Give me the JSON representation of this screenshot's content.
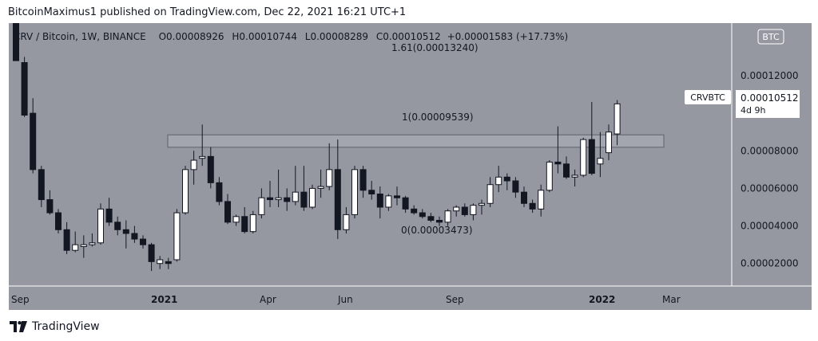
{
  "header": {
    "published": "BitcoinMaximus1 published on TradingView.com, Dec 22, 2021 16:21 UTC+1"
  },
  "symbol_info": {
    "symbol": "CRV / Bitcoin, 1W, BINANCE",
    "o_label": "O",
    "o": "0.00008926",
    "h_label": "H",
    "h": "0.00010744",
    "l_label": "L",
    "l": "0.00008289",
    "c_label": "C",
    "c": "0.00010512",
    "change": "+0.00001583 (+17.73%)"
  },
  "currency_badge": "BTC",
  "price_tag": {
    "symbol": "CRVBTC",
    "price": "0.00010512",
    "countdown": "4d 9h"
  },
  "fib_labels": [
    {
      "text": "1.61(0.00013240)"
    },
    {
      "text": "1(0.00009539)"
    },
    {
      "text": "0(0.00003473)"
    }
  ],
  "footer": {
    "brand": "TradingView"
  },
  "colors": {
    "background": "#9598a1",
    "up": "#ffffff",
    "down": "#131722",
    "zone": "#a3a6ae"
  },
  "chart_data": {
    "type": "candlestick",
    "title": "CRV / Bitcoin, 1W, BINANCE",
    "y_axis": {
      "min": 8e-06,
      "max": 0.000148,
      "ticks": [
        "0.00002000",
        "0.00004000",
        "0.00006000",
        "0.00008000",
        "0.00012000"
      ]
    },
    "x_axis": {
      "ticks": [
        "Sep",
        "2021",
        "Apr",
        "Jun",
        "Sep",
        "2022",
        "Mar"
      ]
    },
    "resistance_zone": [
      8.19e-05,
      8.85e-05
    ],
    "fib_levels": [
      {
        "ratio": 1.61,
        "value": 0.0001324
      },
      {
        "ratio": 1,
        "value": 9.539e-05
      },
      {
        "ratio": 0,
        "value": 3.473e-05
      }
    ],
    "candles": [
      {
        "o": 0.00015,
        "h": 0.00015,
        "l": 0.000128,
        "c": 0.000128
      },
      {
        "o": 0.000127,
        "h": 0.00013,
        "l": 9.8e-05,
        "c": 9.9e-05
      },
      {
        "o": 0.0001,
        "h": 0.000108,
        "l": 6.8e-05,
        "c": 7e-05
      },
      {
        "o": 7e-05,
        "h": 7.2e-05,
        "l": 5e-05,
        "c": 5.4e-05
      },
      {
        "o": 5.4e-05,
        "h": 5.9e-05,
        "l": 4.6e-05,
        "c": 4.7e-05
      },
      {
        "o": 4.7e-05,
        "h": 4.9e-05,
        "l": 3.6e-05,
        "c": 3.8e-05
      },
      {
        "o": 3.8e-05,
        "h": 4.2e-05,
        "l": 2.5e-05,
        "c": 2.7e-05
      },
      {
        "o": 2.7e-05,
        "h": 3.7e-05,
        "l": 2.6e-05,
        "c": 3e-05
      },
      {
        "o": 2.9e-05,
        "h": 3.5e-05,
        "l": 2.3e-05,
        "c": 3e-05
      },
      {
        "o": 3e-05,
        "h": 3.6e-05,
        "l": 2.9e-05,
        "c": 3.1e-05
      },
      {
        "o": 3.1e-05,
        "h": 5.2e-05,
        "l": 3e-05,
        "c": 4.9e-05
      },
      {
        "o": 4.9e-05,
        "h": 5.5e-05,
        "l": 4e-05,
        "c": 4.2e-05
      },
      {
        "o": 4.2e-05,
        "h": 4.5e-05,
        "l": 3.5e-05,
        "c": 3.8e-05
      },
      {
        "o": 3.8e-05,
        "h": 4.3e-05,
        "l": 2.8e-05,
        "c": 3.6e-05
      },
      {
        "o": 3.6e-05,
        "h": 4e-05,
        "l": 3.1e-05,
        "c": 3.3e-05
      },
      {
        "o": 3.3e-05,
        "h": 3.5e-05,
        "l": 2.8e-05,
        "c": 3e-05
      },
      {
        "o": 3e-05,
        "h": 3.1e-05,
        "l": 1.6e-05,
        "c": 2.1e-05
      },
      {
        "o": 2e-05,
        "h": 2.4e-05,
        "l": 1.7e-05,
        "c": 2.2e-05
      },
      {
        "o": 2.1e-05,
        "h": 2.3e-05,
        "l": 1.7e-05,
        "c": 2e-05
      },
      {
        "o": 2.2e-05,
        "h": 4.9e-05,
        "l": 2.1e-05,
        "c": 4.7e-05
      },
      {
        "o": 4.7e-05,
        "h": 7.2e-05,
        "l": 4.6e-05,
        "c": 7e-05
      },
      {
        "o": 7e-05,
        "h": 8e-05,
        "l": 6.2e-05,
        "c": 7.5e-05
      },
      {
        "o": 7.6e-05,
        "h": 9.4e-05,
        "l": 7.2e-05,
        "c": 7.7e-05
      },
      {
        "o": 7.7e-05,
        "h": 8.2e-05,
        "l": 6e-05,
        "c": 6.3e-05
      },
      {
        "o": 6.3e-05,
        "h": 6.6e-05,
        "l": 5.1e-05,
        "c": 5.3e-05
      },
      {
        "o": 5.3e-05,
        "h": 5.7e-05,
        "l": 4.1e-05,
        "c": 4.2e-05
      },
      {
        "o": 4.2e-05,
        "h": 4.6e-05,
        "l": 4e-05,
        "c": 4.5e-05
      },
      {
        "o": 4.5e-05,
        "h": 5e-05,
        "l": 3.6e-05,
        "c": 3.7e-05
      },
      {
        "o": 3.7e-05,
        "h": 4.8e-05,
        "l": 3.6e-05,
        "c": 4.6e-05
      },
      {
        "o": 4.6e-05,
        "h": 6e-05,
        "l": 4.4e-05,
        "c": 5.5e-05
      },
      {
        "o": 5.5e-05,
        "h": 6.4e-05,
        "l": 5e-05,
        "c": 5.4e-05
      },
      {
        "o": 5.4e-05,
        "h": 7e-05,
        "l": 5e-05,
        "c": 5.5e-05
      },
      {
        "o": 5.5e-05,
        "h": 6e-05,
        "l": 4.8e-05,
        "c": 5.3e-05
      },
      {
        "o": 5.3e-05,
        "h": 7.2e-05,
        "l": 5.1e-05,
        "c": 5.8e-05
      },
      {
        "o": 5.8e-05,
        "h": 7.2e-05,
        "l": 4.8e-05,
        "c": 5e-05
      },
      {
        "o": 5e-05,
        "h": 6.2e-05,
        "l": 4.9e-05,
        "c": 6e-05
      },
      {
        "o": 6e-05,
        "h": 7e-05,
        "l": 5.5e-05,
        "c": 6.1e-05
      },
      {
        "o": 6.1e-05,
        "h": 8.4e-05,
        "l": 5.9e-05,
        "c": 7e-05
      },
      {
        "o": 7e-05,
        "h": 8.6e-05,
        "l": 3.3e-05,
        "c": 3.8e-05
      },
      {
        "o": 3.8e-05,
        "h": 5e-05,
        "l": 3.6e-05,
        "c": 4.6e-05
      },
      {
        "o": 4.6e-05,
        "h": 7.2e-05,
        "l": 4.4e-05,
        "c": 7e-05
      },
      {
        "o": 7e-05,
        "h": 7.2e-05,
        "l": 5.5e-05,
        "c": 5.9e-05
      },
      {
        "o": 5.9e-05,
        "h": 6.4e-05,
        "l": 5.4e-05,
        "c": 5.7e-05
      },
      {
        "o": 5.7e-05,
        "h": 6.1e-05,
        "l": 4.4e-05,
        "c": 5e-05
      },
      {
        "o": 5e-05,
        "h": 5.7e-05,
        "l": 4.8e-05,
        "c": 5.6e-05
      },
      {
        "o": 5.6e-05,
        "h": 6.1e-05,
        "l": 5.1e-05,
        "c": 5.5e-05
      },
      {
        "o": 5.5e-05,
        "h": 5.6e-05,
        "l": 4.7e-05,
        "c": 4.9e-05
      },
      {
        "o": 4.9e-05,
        "h": 5.1e-05,
        "l": 4.6e-05,
        "c": 4.7e-05
      },
      {
        "o": 4.7e-05,
        "h": 4.9e-05,
        "l": 4.4e-05,
        "c": 4.5e-05
      },
      {
        "o": 4.5e-05,
        "h": 4.7e-05,
        "l": 4.2e-05,
        "c": 4.3e-05
      },
      {
        "o": 4.3e-05,
        "h": 4.5e-05,
        "l": 4e-05,
        "c": 4.2e-05
      },
      {
        "o": 4.2e-05,
        "h": 4.9e-05,
        "l": 4e-05,
        "c": 4.8e-05
      },
      {
        "o": 4.8e-05,
        "h": 5.1e-05,
        "l": 4.5e-05,
        "c": 5e-05
      },
      {
        "o": 5e-05,
        "h": 5.2e-05,
        "l": 4.5e-05,
        "c": 4.6e-05
      },
      {
        "o": 4.6e-05,
        "h": 5.2e-05,
        "l": 4.3e-05,
        "c": 5.1e-05
      },
      {
        "o": 5.1e-05,
        "h": 5.4e-05,
        "l": 4.6e-05,
        "c": 5.2e-05
      },
      {
        "o": 5.2e-05,
        "h": 6.6e-05,
        "l": 5e-05,
        "c": 6.2e-05
      },
      {
        "o": 6.2e-05,
        "h": 7.2e-05,
        "l": 5.8e-05,
        "c": 6.6e-05
      },
      {
        "o": 6.6e-05,
        "h": 6.8e-05,
        "l": 5.9e-05,
        "c": 6.4e-05
      },
      {
        "o": 6.4e-05,
        "h": 6.6e-05,
        "l": 5.5e-05,
        "c": 5.8e-05
      },
      {
        "o": 5.8e-05,
        "h": 6.1e-05,
        "l": 5e-05,
        "c": 5.2e-05
      },
      {
        "o": 5.2e-05,
        "h": 5.4e-05,
        "l": 4.7e-05,
        "c": 4.9e-05
      },
      {
        "o": 4.9e-05,
        "h": 6.2e-05,
        "l": 4.5e-05,
        "c": 5.9e-05
      },
      {
        "o": 5.9e-05,
        "h": 7.5e-05,
        "l": 5.8e-05,
        "c": 7.4e-05
      },
      {
        "o": 7.4e-05,
        "h": 9.3e-05,
        "l": 6.8e-05,
        "c": 7.3e-05
      },
      {
        "o": 7.3e-05,
        "h": 7.7e-05,
        "l": 6.5e-05,
        "c": 6.6e-05
      },
      {
        "o": 6.6e-05,
        "h": 7e-05,
        "l": 6.1e-05,
        "c": 6.7e-05
      },
      {
        "o": 6.7e-05,
        "h": 8.7e-05,
        "l": 6.6e-05,
        "c": 8.6e-05
      },
      {
        "o": 8.6e-05,
        "h": 0.000106,
        "l": 6.7e-05,
        "c": 6.8e-05
      },
      {
        "o": 7.3e-05,
        "h": 9e-05,
        "l": 6.6e-05,
        "c": 7.6e-05
      },
      {
        "o": 7.9e-05,
        "h": 9.4e-05,
        "l": 7.5e-05,
        "c": 9e-05
      },
      {
        "o": 8.9e-05,
        "h": 0.000107,
        "l": 8.3e-05,
        "c": 0.000105
      }
    ]
  }
}
